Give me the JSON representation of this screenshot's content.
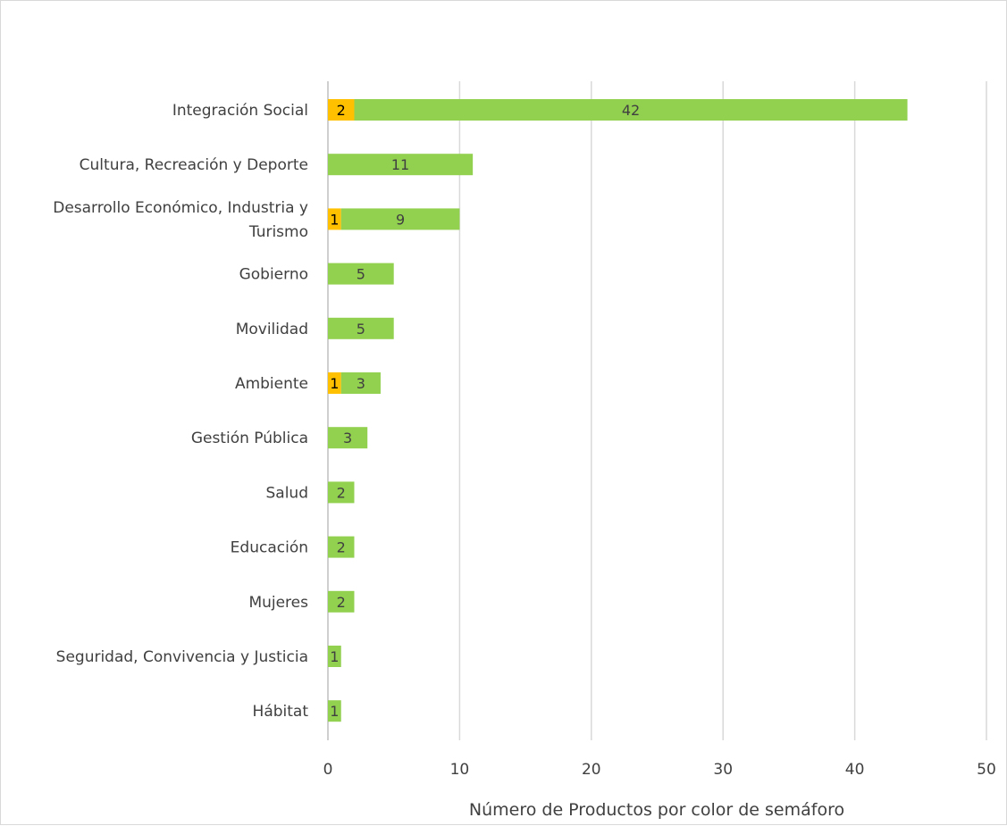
{
  "chart_data": {
    "type": "bar",
    "orientation": "horizontal",
    "stacked": true,
    "categories": [
      [
        "Integración Social"
      ],
      [
        "Cultura, Recreación y Deporte"
      ],
      [
        "Desarrollo Económico, Industria y",
        "Turismo"
      ],
      [
        "Gobierno"
      ],
      [
        "Movilidad"
      ],
      [
        "Ambiente"
      ],
      [
        "Gestión Pública"
      ],
      [
        "Salud"
      ],
      [
        "Educación"
      ],
      [
        "Mujeres"
      ],
      [
        "Seguridad, Convivencia y Justicia"
      ],
      [
        "Hábitat"
      ]
    ],
    "series": [
      {
        "color": "#FFC000",
        "label_color": "#000000",
        "values": [
          2,
          0,
          1,
          0,
          0,
          1,
          0,
          0,
          0,
          0,
          0,
          0
        ]
      },
      {
        "color": "#92D050",
        "label_color": "#404040",
        "values": [
          42,
          11,
          9,
          5,
          5,
          3,
          3,
          2,
          2,
          2,
          1,
          1
        ]
      }
    ],
    "xlabel": "Número de Productos por color de semáforo",
    "xlim": [
      0,
      50
    ],
    "xticks": [
      0,
      10,
      20,
      30,
      40,
      50
    ],
    "grid": true,
    "legend": "none"
  }
}
